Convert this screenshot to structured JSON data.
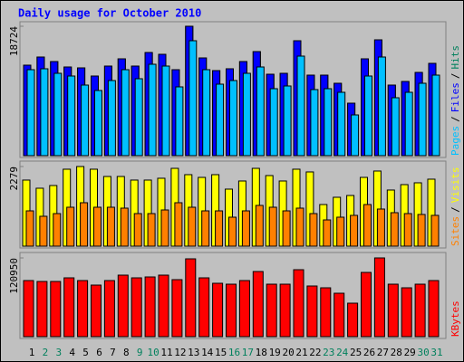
{
  "chart_data": [
    {
      "type": "bar",
      "title": "Daily usage for October 2010",
      "legend_separator": "/",
      "ylim": [
        0,
        18724
      ],
      "yticks": [
        18724
      ],
      "series": [
        {
          "name": "Hits",
          "color": "#00805c",
          "values": [
            13094,
            14272,
            13617,
            12832,
            12701,
            11522,
            12963,
            14010,
            12963,
            14927,
            14665,
            12439,
            18724,
            14141,
            12308,
            12570,
            13617,
            15058,
            11784,
            11915,
            16629,
            11653,
            11653,
            10475,
            7594,
            14010,
            16760,
            10213,
            10737,
            12046,
            13355
          ]
        },
        {
          "name": "Files",
          "color": "#0000ff",
          "values": [
            13094,
            14272,
            13617,
            12832,
            12701,
            11522,
            12963,
            14010,
            12963,
            14927,
            14665,
            12439,
            18724,
            14141,
            12308,
            12570,
            13617,
            15058,
            11784,
            11915,
            16629,
            11653,
            11653,
            10475,
            7594,
            14010,
            16760,
            10213,
            10737,
            12046,
            13355
          ]
        },
        {
          "name": "Pages",
          "color": "#00c0ff",
          "values": [
            12439,
            12570,
            11915,
            11522,
            10213,
            9427,
            10868,
            12439,
            11130,
            13225,
            12963,
            9951,
            16629,
            12439,
            10344,
            10868,
            11915,
            12832,
            9689,
            10082,
            14403,
            9559,
            9689,
            9166,
            5892,
            11522,
            14272,
            8380,
            9166,
            10475,
            11653
          ]
        }
      ]
    },
    {
      "type": "bar",
      "ylim": [
        0,
        2279
      ],
      "yticks": [
        2279
      ],
      "series": [
        {
          "name": "Visits",
          "color": "#ffff00",
          "values": [
            1891,
            1658,
            1735,
            2202,
            2279,
            2202,
            1994,
            1994,
            1891,
            1891,
            1943,
            2227,
            2046,
            1968,
            2046,
            1632,
            1865,
            2227,
            2020,
            1865,
            2202,
            2124,
            1191,
            1399,
            1450,
            1968,
            2150,
            1606,
            1761,
            1813,
            1917
          ]
        },
        {
          "name": "Sites",
          "color": "#ff8000",
          "values": [
            1010,
            855,
            932,
            1114,
            1243,
            1114,
            1114,
            1088,
            932,
            932,
            1036,
            1243,
            1114,
            1010,
            1010,
            829,
            1010,
            1166,
            1114,
            1010,
            1088,
            932,
            751,
            829,
            881,
            1191,
            1062,
            958,
            932,
            907,
            881
          ]
        }
      ]
    },
    {
      "type": "bar",
      "ylim": [
        0,
        120950
      ],
      "yticks": [
        120950
      ],
      "categories": [
        "1",
        "2",
        "3",
        "4",
        "5",
        "6",
        "7",
        "8",
        "9",
        "10",
        "11",
        "12",
        "13",
        "14",
        "15",
        "16",
        "17",
        "18",
        "19",
        "20",
        "21",
        "22",
        "23",
        "24",
        "25",
        "26",
        "27",
        "28",
        "29",
        "30",
        "31"
      ],
      "category_colors": [
        "#000000",
        "#00805c",
        "#00805c",
        "#000000",
        "#000000",
        "#000000",
        "#000000",
        "#000000",
        "#00805c",
        "#00805c",
        "#000000",
        "#000000",
        "#000000",
        "#000000",
        "#000000",
        "#00805c",
        "#00805c",
        "#000000",
        "#000000",
        "#000000",
        "#000000",
        "#000000",
        "#00805c",
        "#00805c",
        "#000000",
        "#000000",
        "#000000",
        "#000000",
        "#000000",
        "#00805c",
        "#00805c"
      ],
      "series": [
        {
          "name": "KBytes",
          "color": "#ff0000",
          "values": [
            86180,
            84790,
            84790,
            90350,
            86180,
            79230,
            86180,
            94520,
            90350,
            91740,
            94520,
            87570,
            119540,
            90350,
            82010,
            80620,
            86180,
            100080,
            80620,
            80620,
            102860,
            77840,
            75060,
            66720,
            51430,
            98690,
            120950,
            80620,
            75060,
            80620,
            86180
          ]
        }
      ]
    }
  ]
}
